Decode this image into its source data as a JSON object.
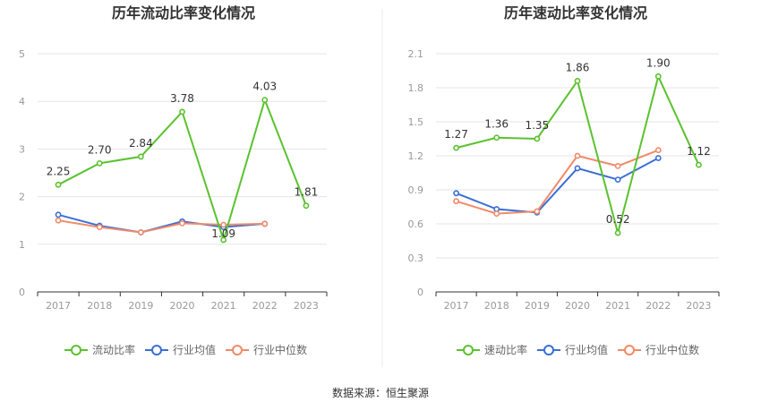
{
  "source": "数据来源：恒生聚源",
  "colors": {
    "company": "#5ac22e",
    "industry_avg": "#3a6fd6",
    "industry_median": "#f08a68",
    "grid": "#e5e5e5",
    "axis": "#333333",
    "divider": "#eeeeee"
  },
  "chart_data": [
    {
      "type": "line",
      "title": "历年流动比率变化情况",
      "categories": [
        "2017",
        "2018",
        "2019",
        "2020",
        "2021",
        "2022",
        "2023"
      ],
      "ylim": [
        0,
        5
      ],
      "yticks": [
        "0",
        "1",
        "2",
        "3",
        "4",
        "5"
      ],
      "grid": true,
      "legend_position": "bottom",
      "series": [
        {
          "name": "流动比率",
          "color": "#5ac22e",
          "values": [
            2.25,
            2.7,
            2.84,
            3.78,
            1.09,
            4.03,
            1.81
          ],
          "labels": [
            "2.25",
            "2.70",
            "2.84",
            "3.78",
            "1.09",
            "4.03",
            "1.81"
          ]
        },
        {
          "name": "行业均值",
          "color": "#3a6fd6",
          "values": [
            1.62,
            1.39,
            1.25,
            1.48,
            1.36,
            1.43,
            null
          ]
        },
        {
          "name": "行业中位数",
          "color": "#f08a68",
          "values": [
            1.5,
            1.36,
            1.25,
            1.44,
            1.41,
            1.43,
            null
          ]
        }
      ]
    },
    {
      "type": "line",
      "title": "历年速动比率变化情况",
      "categories": [
        "2017",
        "2018",
        "2019",
        "2020",
        "2021",
        "2022",
        "2023"
      ],
      "ylim": [
        0,
        2.1
      ],
      "yticks": [
        "0",
        "0.3",
        "0.6",
        "0.9",
        "1.2",
        "1.5",
        "1.8",
        "2.1"
      ],
      "grid": true,
      "legend_position": "bottom",
      "series": [
        {
          "name": "速动比率",
          "color": "#5ac22e",
          "values": [
            1.27,
            1.36,
            1.35,
            1.86,
            0.52,
            1.9,
            1.12
          ],
          "labels": [
            "1.27",
            "1.36",
            "1.35",
            "1.86",
            "0.52",
            "1.90",
            "1.12"
          ]
        },
        {
          "name": "行业均值",
          "color": "#3a6fd6",
          "values": [
            0.87,
            0.73,
            0.7,
            1.09,
            0.99,
            1.18,
            null
          ]
        },
        {
          "name": "行业中位数",
          "color": "#f08a68",
          "values": [
            0.8,
            0.69,
            0.71,
            1.2,
            1.11,
            1.25,
            null
          ]
        }
      ]
    }
  ]
}
